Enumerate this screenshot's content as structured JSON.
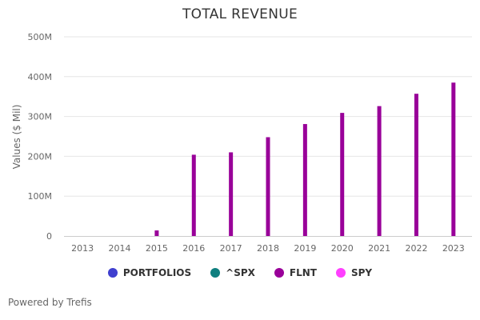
{
  "chart_data": {
    "type": "bar",
    "title": "TOTAL REVENUE",
    "ylabel": "Values ($ Mil)",
    "xlabel": "",
    "categories": [
      "2013",
      "2014",
      "2015",
      "2016",
      "2017",
      "2018",
      "2019",
      "2020",
      "2021",
      "2022",
      "2023"
    ],
    "ylim": [
      0,
      500
    ],
    "yticks": [
      0,
      100,
      200,
      300,
      400,
      500
    ],
    "ytick_labels": [
      "0",
      "100M",
      "200M",
      "300M",
      "400M",
      "500M"
    ],
    "grid": true,
    "legend_position": "bottom",
    "series": [
      {
        "name": "PORTFOLIOS",
        "color": "#3F3FCF",
        "values": [
          null,
          null,
          null,
          null,
          null,
          null,
          null,
          null,
          null,
          null,
          null
        ]
      },
      {
        "name": "^SPX",
        "color": "#0F7F7F",
        "values": [
          null,
          null,
          null,
          null,
          null,
          null,
          null,
          null,
          null,
          null,
          null
        ]
      },
      {
        "name": "FLNT",
        "color": "#990099",
        "values": [
          null,
          null,
          14,
          204,
          210,
          248,
          281,
          309,
          326,
          357,
          385
        ]
      },
      {
        "name": "SPY",
        "color": "#FF3FFF",
        "values": [
          null,
          null,
          null,
          null,
          null,
          null,
          null,
          null,
          null,
          null,
          null
        ]
      }
    ]
  },
  "footer": {
    "credit": "Powered by Trefis"
  }
}
